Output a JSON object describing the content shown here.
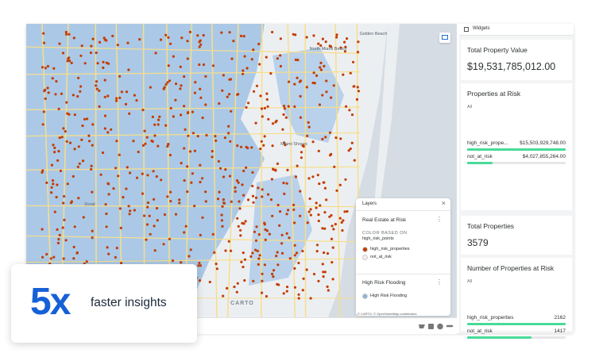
{
  "overlay": {
    "headline": "5x",
    "text": "faster insights"
  },
  "map": {
    "labels": [
      "Golden Beach",
      "North Miami Beach",
      "Miami Shores",
      "Doral"
    ],
    "logo": "CARTO",
    "attribution": "© CARTO, © OpenStreetMap contributors"
  },
  "layers": {
    "title": "Layers",
    "items": [
      {
        "name": "Real Estate at Risk",
        "caption": "COLOR BASED ON",
        "field": "high_risk_points",
        "legend": [
          {
            "label": "high_risk_properties",
            "color": "#c43c00"
          },
          {
            "label": "not_at_risk",
            "color": "#f1eeee"
          }
        ]
      },
      {
        "name": "High Risk Flooding",
        "legend": [
          {
            "label": "High Risk Flooding",
            "color": "#8fb3d6"
          }
        ]
      }
    ]
  },
  "widgets": {
    "title": "Widgets",
    "total_value": {
      "title": "Total Property Value",
      "value": "$19,531,785,012.00"
    },
    "value_at_risk": {
      "title": "Properties at Risk",
      "filter": "All",
      "rows": [
        {
          "label": "high_risk_prope...",
          "value": 15503929748,
          "value_label": "$15,503,929,748.00"
        },
        {
          "label": "not_at_risk",
          "value": 4027855264,
          "value_label": "$4,027,855,264.00"
        }
      ]
    },
    "total_count": {
      "title": "Total Properties",
      "value": 3579
    },
    "count_at_risk": {
      "title": "Number of Properties at Risk",
      "filter": "All",
      "rows": [
        {
          "label": "high_risk_properties",
          "value": 2162
        },
        {
          "label": "not_at_risk",
          "value": 1417
        }
      ]
    }
  }
}
